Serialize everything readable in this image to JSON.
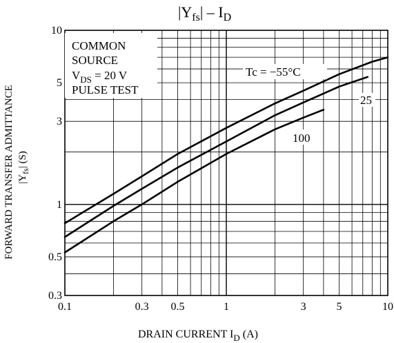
{
  "chart_data": {
    "type": "line",
    "title": {
      "pre": "|Y",
      "sub": "fs",
      "post": "|  –  I",
      "sub2": "D"
    },
    "xlabel": {
      "pre": "DRAIN CURRENT  I",
      "sub": "D",
      "post": "   (A)"
    },
    "ylabel": {
      "line1": "FORWARD TRANSFER ADMITTANCE",
      "line2_pre": "|Y",
      "line2_sub": "fs",
      "line2_post": "|   (S)"
    },
    "x_scale": "log",
    "y_scale": "log",
    "xlim": [
      0.1,
      10
    ],
    "ylim": [
      0.3,
      10
    ],
    "grid": true,
    "x_ticks": [
      {
        "value": 0.1,
        "label": "0.1"
      },
      {
        "value": 0.3,
        "label": "0.3"
      },
      {
        "value": 0.5,
        "label": "0.5"
      },
      {
        "value": 1,
        "label": "1"
      },
      {
        "value": 3,
        "label": "3"
      },
      {
        "value": 5,
        "label": "5"
      },
      {
        "value": 10,
        "label": "10"
      }
    ],
    "y_ticks": [
      {
        "value": 0.3,
        "label": "0.3"
      },
      {
        "value": 0.5,
        "label": "0.5"
      },
      {
        "value": 1,
        "label": "1"
      },
      {
        "value": 3,
        "label": "3"
      },
      {
        "value": 5,
        "label": "5"
      },
      {
        "value": 10,
        "label": "10"
      }
    ],
    "conditions": [
      "COMMON",
      "SOURCE",
      "V_DS = 20 V",
      "PULSE TEST"
    ],
    "conditions_vds": {
      "pre": "V",
      "sub": "DS",
      "post": " = 20 V"
    },
    "series": [
      {
        "name": "Tc = −55°C",
        "x": [
          0.1,
          0.2,
          0.3,
          0.5,
          1,
          2,
          3,
          5,
          8,
          10
        ],
        "y": [
          0.78,
          1.15,
          1.45,
          1.95,
          2.75,
          3.8,
          4.5,
          5.6,
          6.6,
          7.0
        ]
      },
      {
        "name": "25",
        "x": [
          0.1,
          0.2,
          0.3,
          0.5,
          1,
          2,
          3,
          5,
          7.5
        ],
        "y": [
          0.65,
          0.98,
          1.23,
          1.63,
          2.3,
          3.25,
          3.85,
          4.75,
          5.4
        ]
      },
      {
        "name": "100",
        "x": [
          0.1,
          0.2,
          0.3,
          0.5,
          1,
          2,
          3,
          4
        ],
        "y": [
          0.53,
          0.8,
          1.0,
          1.35,
          1.95,
          2.7,
          3.15,
          3.5
        ]
      }
    ]
  }
}
